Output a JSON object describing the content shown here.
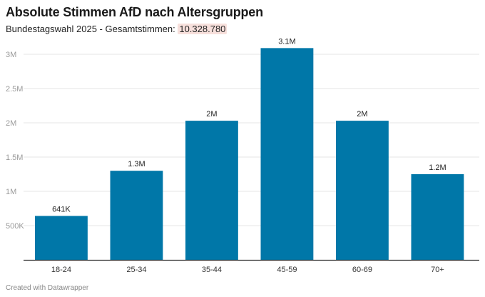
{
  "header": {
    "title": "Absolute Stimmen AfD nach Altersgruppen",
    "subtitle_prefix": "Bundestagswahl 2025 - Gesamtstimmen: ",
    "subtitle_value": "10.328.780"
  },
  "footer": {
    "credit": "Created with Datawrapper"
  },
  "colors": {
    "bar": "#0077a8",
    "highlight": "#f7e0dc",
    "grid": "#e6e6e6",
    "axis": "#333333"
  },
  "chart_data": {
    "type": "bar",
    "title": "Absolute Stimmen AfD nach Altersgruppen",
    "xlabel": "",
    "ylabel": "",
    "categories": [
      "18-24",
      "25-34",
      "35-44",
      "45-59",
      "60-69",
      "70+"
    ],
    "values": [
      641000,
      1300000,
      2030000,
      3090000,
      2030000,
      1250000
    ],
    "data_labels": [
      "641K",
      "1.3M",
      "2M",
      "3.1M",
      "2M",
      "1.2M"
    ],
    "ylim": [
      0,
      3000000
    ],
    "yticks": [
      500000,
      1000000,
      1500000,
      2000000,
      2500000,
      3000000
    ],
    "ytick_labels": [
      "500K",
      "1M",
      "1.5M",
      "2M",
      "2.5M",
      "3M"
    ],
    "grid": true
  }
}
